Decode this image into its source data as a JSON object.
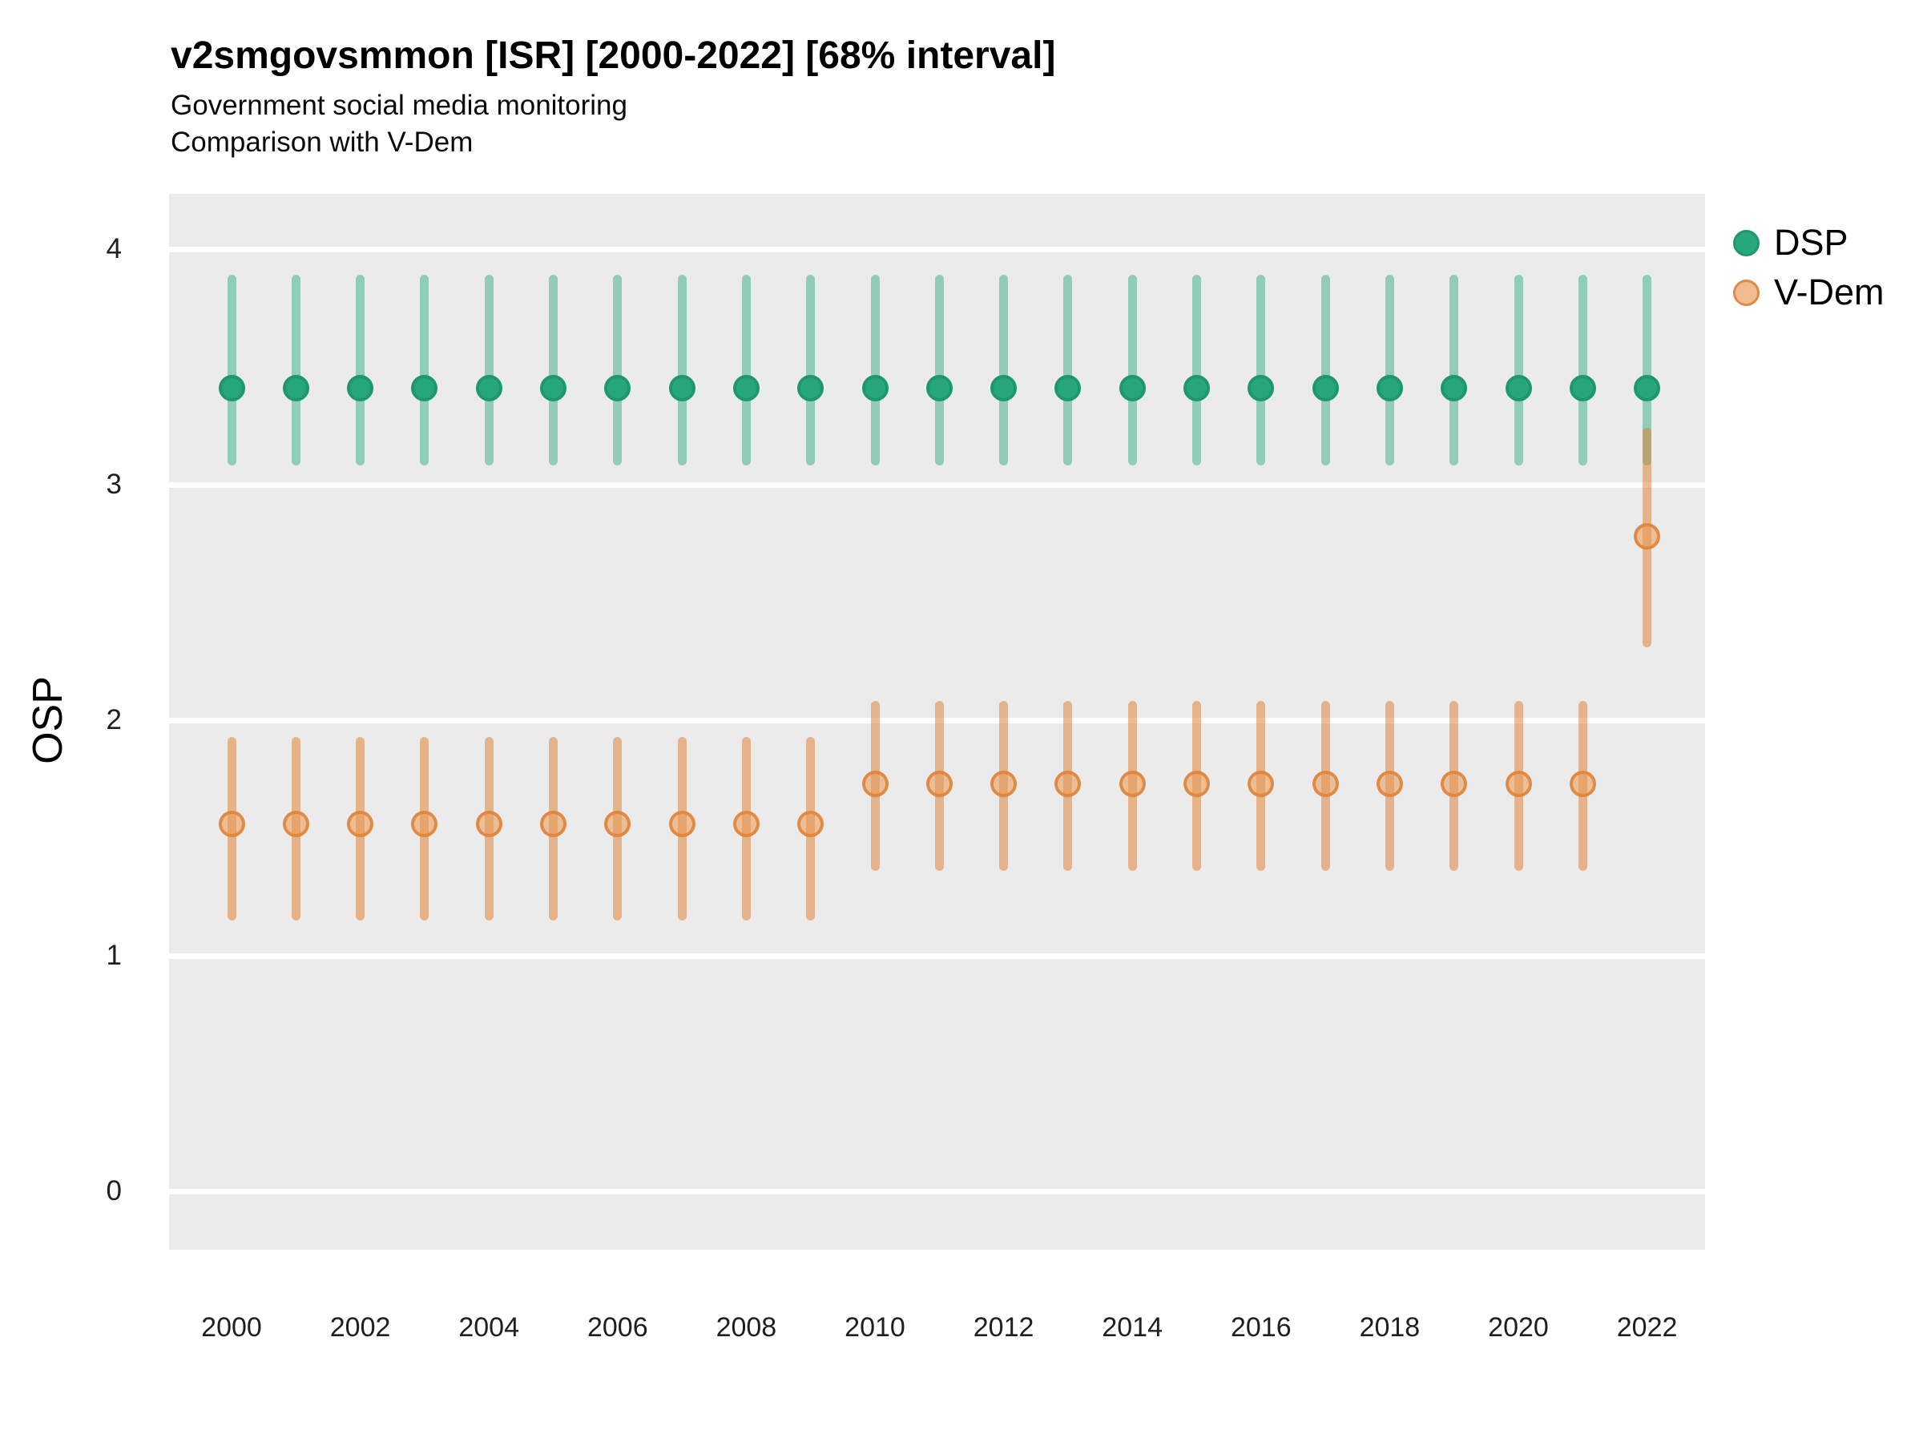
{
  "header": {
    "title": "v2smgovsmmon [ISR] [2000-2022] [68% interval]",
    "subtitle1": "Government social media monitoring",
    "subtitle2": "Comparison with V-Dem"
  },
  "axes": {
    "y_title": "OSP",
    "y_ticks": [
      4,
      3,
      2,
      1,
      0
    ],
    "x_ticks": [
      2000,
      2002,
      2004,
      2006,
      2008,
      2010,
      2012,
      2014,
      2016,
      2018,
      2020,
      2022
    ]
  },
  "legend": {
    "items": [
      {
        "id": "dsp",
        "label": "DSP",
        "fill": "#2aa87d",
        "border": "#1e9770"
      },
      {
        "id": "vdem",
        "label": "V-Dem",
        "fill": "#f1bb8e",
        "border": "#df8a4b"
      }
    ]
  },
  "chart_data": {
    "type": "scatter",
    "subtype": "pointrange",
    "title": "v2smgovsmmon [ISR] [2000-2022] [68% interval]",
    "subtitle": [
      "Government social media monitoring",
      "Comparison with V-Dem"
    ],
    "interval": "68%",
    "xlabel": "",
    "ylabel": "OSP",
    "xlim": [
      1999.0,
      2022.9
    ],
    "ylim": [
      -0.25,
      4.23
    ],
    "grid": "white major horizontal gridlines on gray panel",
    "legend_position": "top-right",
    "x": [
      2000,
      2001,
      2002,
      2003,
      2004,
      2005,
      2006,
      2007,
      2008,
      2009,
      2010,
      2011,
      2012,
      2013,
      2014,
      2015,
      2016,
      2017,
      2018,
      2019,
      2020,
      2021,
      2022
    ],
    "series": [
      {
        "name": "DSP",
        "point_color": "#27a57b",
        "point_border": "#1e9770",
        "bar_color": "rgba(35,166,120,0.45)",
        "mid": [
          3.41,
          3.41,
          3.41,
          3.41,
          3.41,
          3.41,
          3.41,
          3.41,
          3.41,
          3.41,
          3.41,
          3.41,
          3.41,
          3.41,
          3.41,
          3.41,
          3.41,
          3.41,
          3.41,
          3.41,
          3.41,
          3.41,
          3.41
        ],
        "lo": [
          3.08,
          3.08,
          3.08,
          3.08,
          3.08,
          3.08,
          3.08,
          3.08,
          3.08,
          3.08,
          3.08,
          3.08,
          3.08,
          3.08,
          3.08,
          3.08,
          3.08,
          3.08,
          3.08,
          3.08,
          3.08,
          3.08,
          3.08
        ],
        "hi": [
          3.89,
          3.89,
          3.89,
          3.89,
          3.89,
          3.89,
          3.89,
          3.89,
          3.89,
          3.89,
          3.89,
          3.89,
          3.89,
          3.89,
          3.89,
          3.89,
          3.89,
          3.89,
          3.89,
          3.89,
          3.89,
          3.89,
          3.89
        ]
      },
      {
        "name": "V-Dem",
        "point_color": "rgba(233,153,82,0.55)",
        "point_border": "rgba(222,133,60,0.9)",
        "bar_color": "rgba(223,124,42,0.5)",
        "mid": [
          1.56,
          1.56,
          1.56,
          1.56,
          1.56,
          1.56,
          1.56,
          1.56,
          1.56,
          1.56,
          1.73,
          1.73,
          1.73,
          1.73,
          1.73,
          1.73,
          1.73,
          1.73,
          1.73,
          1.73,
          1.73,
          1.73,
          2.78
        ],
        "lo": [
          1.15,
          1.15,
          1.15,
          1.15,
          1.15,
          1.15,
          1.15,
          1.15,
          1.15,
          1.15,
          1.36,
          1.36,
          1.36,
          1.36,
          1.36,
          1.36,
          1.36,
          1.36,
          1.36,
          1.36,
          1.36,
          1.36,
          2.31
        ],
        "hi": [
          1.93,
          1.93,
          1.93,
          1.93,
          1.93,
          1.93,
          1.93,
          1.93,
          1.93,
          1.93,
          2.08,
          2.08,
          2.08,
          2.08,
          2.08,
          2.08,
          2.08,
          2.08,
          2.08,
          2.08,
          2.08,
          2.08,
          3.24
        ]
      }
    ]
  }
}
